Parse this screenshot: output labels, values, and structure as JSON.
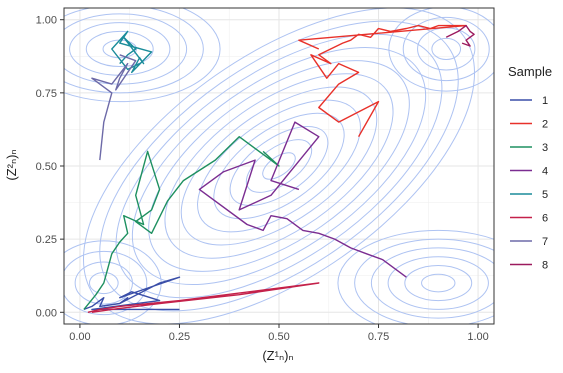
{
  "chart_data": {
    "type": "line",
    "title": "",
    "xlabel": "(Z¹ₙ)ₙ",
    "ylabel": "(Z²ₙ)ₙ",
    "xlim": [
      -0.04,
      1.04
    ],
    "ylim": [
      -0.04,
      1.04
    ],
    "x_ticks": [
      0.0,
      0.25,
      0.5,
      0.75,
      1.0
    ],
    "x_tick_labels": [
      "0.00",
      "0.25",
      "0.50",
      "0.75",
      "1.00"
    ],
    "y_ticks": [
      0.0,
      0.25,
      0.5,
      0.75,
      1.0
    ],
    "y_tick_labels": [
      "0.00",
      "0.25",
      "0.50",
      "0.75",
      "1.00"
    ],
    "grid": true,
    "legend": {
      "title": "Sample",
      "placement": "right"
    },
    "background_contours": {
      "color": "#aec3f2",
      "description": "density contours",
      "centers": [
        {
          "x": 0.5,
          "y": 0.5,
          "levels": 12,
          "step": 0.035,
          "rx": 1.35,
          "ry": 0.9
        },
        {
          "x": 0.1,
          "y": 0.9,
          "levels": 6,
          "step": 0.03,
          "rx": 1.4,
          "ry": 1.0
        },
        {
          "x": 0.9,
          "y": 0.1,
          "levels": 6,
          "step": 0.03,
          "rx": 1.4,
          "ry": 1.0
        },
        {
          "x": 0.92,
          "y": 0.9,
          "levels": 4,
          "step": 0.03,
          "rx": 1.2,
          "ry": 1.2
        },
        {
          "x": 0.06,
          "y": 0.1,
          "levels": 4,
          "step": 0.03,
          "rx": 1.2,
          "ry": 1.2
        }
      ]
    },
    "series": [
      {
        "name": "1",
        "color": "#3a4ea8",
        "x": [
          0.01,
          0.03,
          0.06,
          0.05,
          0.1,
          0.12,
          0.1,
          0.2,
          0.25,
          0.1,
          0.13,
          0.2,
          0.03,
          0.25
        ],
        "y": [
          0.01,
          0.02,
          0.05,
          0.02,
          0.03,
          0.05,
          0.03,
          0.1,
          0.12,
          0.05,
          0.07,
          0.04,
          0.01,
          0.01
        ]
      },
      {
        "name": "2",
        "color": "#e8312a",
        "x": [
          0.6,
          0.55,
          0.97,
          0.95,
          0.9,
          0.88,
          0.85,
          0.82,
          0.78,
          0.75,
          0.73,
          0.7,
          0.68,
          0.66,
          0.6,
          0.63,
          0.58,
          0.62,
          0.65,
          0.7,
          0.65,
          0.6,
          0.65,
          0.75,
          0.7
        ],
        "y": [
          0.9,
          0.93,
          0.98,
          0.98,
          0.98,
          0.97,
          0.98,
          0.97,
          0.96,
          0.97,
          0.94,
          0.95,
          0.93,
          0.92,
          0.88,
          0.85,
          0.88,
          0.8,
          0.85,
          0.82,
          0.78,
          0.7,
          0.65,
          0.72,
          0.6
        ]
      },
      {
        "name": "3",
        "color": "#1e9060",
        "x": [
          0.01,
          0.04,
          0.06,
          0.07,
          0.08,
          0.1,
          0.12,
          0.11,
          0.16,
          0.14,
          0.17,
          0.2,
          0.18,
          0.14,
          0.18,
          0.22,
          0.26,
          0.34,
          0.4,
          0.5,
          0.46
        ],
        "y": [
          0.01,
          0.06,
          0.1,
          0.15,
          0.2,
          0.24,
          0.27,
          0.33,
          0.3,
          0.4,
          0.55,
          0.42,
          0.35,
          0.31,
          0.27,
          0.38,
          0.45,
          0.52,
          0.6,
          0.5,
          0.55
        ]
      },
      {
        "name": "4",
        "color": "#7b2d91",
        "x": [
          0.82,
          0.76,
          0.72,
          0.68,
          0.64,
          0.6,
          0.56,
          0.52,
          0.48,
          0.46,
          0.42,
          0.3,
          0.36,
          0.44,
          0.4,
          0.48,
          0.6,
          0.54,
          0.48,
          0.55
        ],
        "y": [
          0.12,
          0.18,
          0.2,
          0.22,
          0.25,
          0.27,
          0.28,
          0.32,
          0.33,
          0.28,
          0.3,
          0.42,
          0.48,
          0.52,
          0.35,
          0.4,
          0.6,
          0.65,
          0.45,
          0.42
        ]
      },
      {
        "name": "5",
        "color": "#1a8c9a",
        "x": [
          0.1,
          0.12,
          0.14,
          0.11,
          0.16,
          0.15,
          0.13,
          0.18,
          0.1,
          0.12,
          0.08,
          0.12,
          0.15
        ],
        "y": [
          0.85,
          0.88,
          0.9,
          0.94,
          0.85,
          0.87,
          0.82,
          0.89,
          0.92,
          0.96,
          0.9,
          0.83,
          0.85
        ]
      },
      {
        "name": "6",
        "color": "#c4214a",
        "x": [
          0.02,
          0.05,
          0.1,
          0.25,
          0.6,
          0.4,
          0.2,
          0.08,
          0.03
        ],
        "y": [
          0.0,
          0.01,
          0.02,
          0.04,
          0.1,
          0.06,
          0.03,
          0.01,
          0.0
        ]
      },
      {
        "name": "7",
        "color": "#6d6aa8",
        "x": [
          0.05,
          0.06,
          0.08,
          0.03,
          0.08,
          0.12,
          0.1,
          0.09,
          0.12,
          0.14,
          0.1
        ],
        "y": [
          0.52,
          0.65,
          0.75,
          0.8,
          0.78,
          0.85,
          0.8,
          0.76,
          0.82,
          0.86,
          0.88
        ]
      },
      {
        "name": "8",
        "color": "#9c1a5e",
        "x": [
          0.92,
          0.95,
          0.97,
          0.98,
          0.99,
          0.97,
          0.98,
          0.96
        ],
        "y": [
          0.94,
          0.96,
          0.98,
          0.96,
          0.95,
          0.93,
          0.91,
          0.92
        ]
      }
    ]
  }
}
